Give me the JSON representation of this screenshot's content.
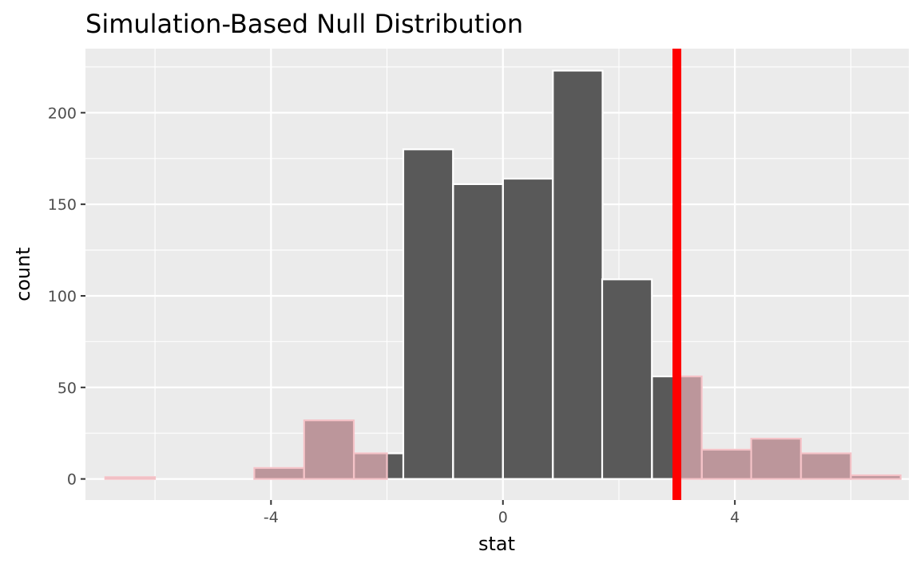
{
  "chart_data": {
    "type": "bar",
    "title": "Simulation-Based Null Distribution",
    "xlabel": "stat",
    "ylabel": "count",
    "xlim": [
      -7.2,
      7.0
    ],
    "ylim": [
      -11.5,
      235
    ],
    "x_ticks": [
      -4,
      0,
      4
    ],
    "x_tick_labels": [
      "-4",
      "0",
      "4"
    ],
    "y_ticks": [
      0,
      50,
      100,
      150,
      200
    ],
    "y_tick_labels": [
      "0",
      "50",
      "100",
      "150",
      "200"
    ],
    "grid": true,
    "legend": "none",
    "bin_width": 0.857,
    "bins": [
      {
        "x": -6.43,
        "count": 1,
        "shaded": true
      },
      {
        "x": -5.57,
        "count": 0,
        "shaded": true
      },
      {
        "x": -4.71,
        "count": 0,
        "shaded": true
      },
      {
        "x": -3.86,
        "count": 6,
        "shaded": true
      },
      {
        "x": -3.0,
        "count": 32,
        "shaded": true
      },
      {
        "x": -2.14,
        "count": 14,
        "shaded": true
      },
      {
        "x": -1.29,
        "count": 180,
        "shaded": false
      },
      {
        "x": -0.43,
        "count": 161,
        "shaded": false
      },
      {
        "x": 0.43,
        "count": 164,
        "shaded": false
      },
      {
        "x": 1.29,
        "count": 223,
        "shaded": false
      },
      {
        "x": 2.14,
        "count": 109,
        "shaded": false
      },
      {
        "x": 3.0,
        "count": 56,
        "shaded": false
      },
      {
        "x": 3.86,
        "count": 16,
        "shaded": true
      },
      {
        "x": 4.71,
        "count": 22,
        "shaded": true
      },
      {
        "x": 5.57,
        "count": 14,
        "shaded": true
      },
      {
        "x": 6.43,
        "count": 2,
        "shaded": true
      }
    ],
    "shade_regions": [
      [
        -7.2,
        -2.0
      ],
      [
        3.0,
        7.0
      ]
    ],
    "observed_stat": 3.0,
    "colors": {
      "panel": "#ebebeb",
      "grid": "#ffffff",
      "bar_fill": "#595959",
      "bar_outline": "#ffffff",
      "shade_fill": "#bc969b",
      "shade_edge": "#f4c2c7",
      "observed_line": "#ff0000"
    }
  }
}
